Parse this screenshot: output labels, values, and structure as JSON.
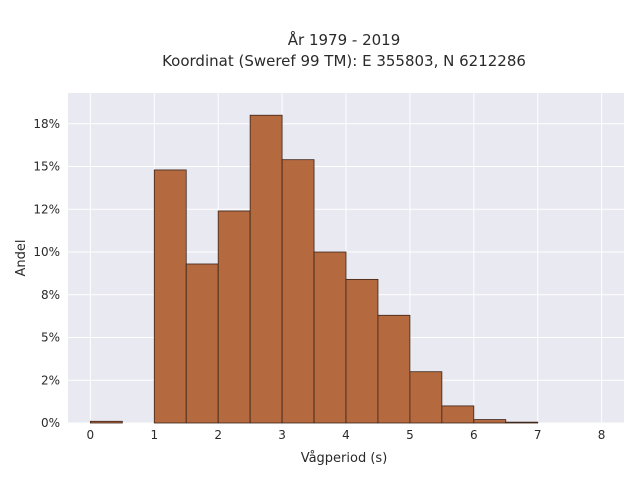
{
  "chart_data": {
    "type": "bar",
    "title_line1": "År 1979 - 2019",
    "title_line2": "Koordinat (Sweref 99 TM): E 355803, N 6212286",
    "xlabel": "Vågperiod (s)",
    "ylabel": "Andel",
    "bin_width": 0.5,
    "bins": [
      {
        "start": 0.0,
        "value": 0.1
      },
      {
        "start": 1.0,
        "value": 14.8
      },
      {
        "start": 1.5,
        "value": 9.3
      },
      {
        "start": 2.0,
        "value": 12.4
      },
      {
        "start": 2.5,
        "value": 18.0
      },
      {
        "start": 3.0,
        "value": 15.4
      },
      {
        "start": 3.5,
        "value": 10.0
      },
      {
        "start": 4.0,
        "value": 8.4
      },
      {
        "start": 4.5,
        "value": 6.3
      },
      {
        "start": 5.0,
        "value": 3.0
      },
      {
        "start": 5.5,
        "value": 1.0
      },
      {
        "start": 6.0,
        "value": 0.2
      },
      {
        "start": 6.5,
        "value": 0.05
      }
    ],
    "xlim": [
      -0.35,
      8.35
    ],
    "ylim": [
      0,
      19.3
    ],
    "x_ticks": [
      0,
      1,
      2,
      3,
      4,
      5,
      6,
      7,
      8
    ],
    "y_ticks": [
      {
        "value": 0,
        "label": "0%"
      },
      {
        "value": 2.5,
        "label": "2%"
      },
      {
        "value": 5,
        "label": "5%"
      },
      {
        "value": 7.5,
        "label": "8%"
      },
      {
        "value": 10,
        "label": "10%"
      },
      {
        "value": 12.5,
        "label": "12%"
      },
      {
        "value": 15,
        "label": "15%"
      },
      {
        "value": 17.5,
        "label": "18%"
      }
    ],
    "grid": true,
    "colors": {
      "bar_fill": "#b5693f",
      "bar_stroke": "#3a2418",
      "plot_background": "#e9e9f1",
      "grid": "#ffffff"
    }
  }
}
